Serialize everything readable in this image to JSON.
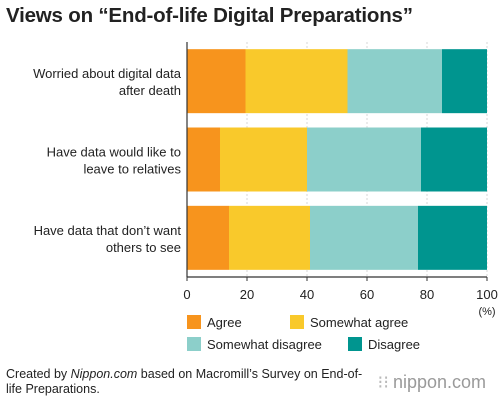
{
  "title": "Views on “End-of-life Digital Preparations”",
  "source": {
    "prefix": "Created by ",
    "site": "Nippon.com",
    "rest": " based on Macromill’s Survey on End-of-life Preparations."
  },
  "brand": {
    "glyph": "⁝⁝",
    "text": "nippon.com"
  },
  "colors": {
    "agree": "#f7941d",
    "somewhat_agree": "#f9c92b",
    "somewhat_disagree": "#8ccfca",
    "disagree": "#00958f",
    "grid": "#d7d7d7",
    "axis": "#333333"
  },
  "chart_data": {
    "type": "bar",
    "orientation": "horizontal",
    "stacked": true,
    "title": "Views on “End-of-life Digital Preparations”",
    "categories": [
      [
        "Worried about digital data",
        "after death"
      ],
      [
        "Have data would like to",
        "leave to relatives"
      ],
      [
        "Have data that don’t want",
        "others to see"
      ]
    ],
    "series": [
      {
        "name": "Agree",
        "color": "#f7941d",
        "values": [
          19.5,
          11,
          14
        ]
      },
      {
        "name": "Somewhat agree",
        "color": "#f9c92b",
        "values": [
          34,
          29,
          27
        ]
      },
      {
        "name": "Somewhat disagree",
        "color": "#8ccfca",
        "values": [
          31.5,
          38,
          36
        ]
      },
      {
        "name": "Disagree",
        "color": "#00958f",
        "values": [
          15,
          22,
          23
        ]
      }
    ],
    "xlim": [
      0,
      100
    ],
    "xticks": [
      0,
      20,
      40,
      60,
      80,
      100
    ],
    "xunit": "(%)",
    "grid": true,
    "legend": "bottom"
  }
}
